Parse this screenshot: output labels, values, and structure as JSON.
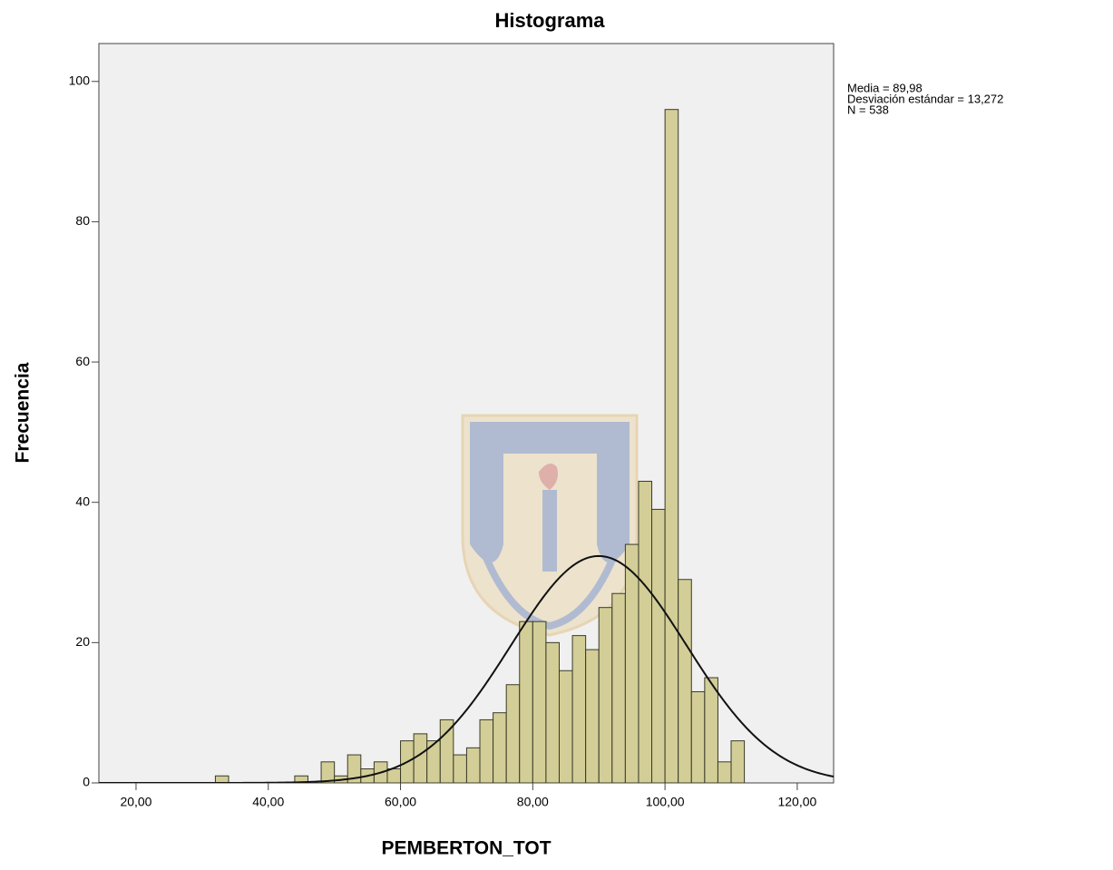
{
  "chart_data": {
    "type": "histogram",
    "title": "Histograma",
    "x_label": "PEMBERTON_TOT",
    "y_label": "Frecuencia",
    "bins": [
      32,
      34,
      36,
      38,
      40,
      42,
      44,
      46,
      48,
      50,
      52,
      54,
      56,
      58,
      60,
      62,
      64,
      66,
      68,
      70,
      72,
      74,
      76,
      78,
      80,
      82,
      84,
      86,
      88,
      90,
      92,
      94,
      96,
      98,
      100,
      102,
      104,
      106,
      108,
      110,
      112
    ],
    "counts": [
      1,
      0,
      0,
      0,
      0,
      0,
      1,
      0,
      3,
      1,
      4,
      2,
      3,
      2,
      6,
      7,
      6,
      9,
      4,
      5,
      9,
      10,
      14,
      23,
      23,
      20,
      16,
      21,
      19,
      25,
      27,
      34,
      43,
      39,
      96,
      29,
      13,
      15,
      3,
      6
    ],
    "color": "#d3ce97",
    "xlim": [
      14.38,
      125.5
    ],
    "ylim": [
      0,
      105.4
    ],
    "xticks": [
      {
        "value": 20,
        "label": "20,00"
      },
      {
        "value": 40,
        "label": "40,00"
      },
      {
        "value": 60,
        "label": "60,00"
      },
      {
        "value": 80,
        "label": "80,00"
      },
      {
        "value": 100,
        "label": "100,00"
      },
      {
        "value": 120,
        "label": "120,00"
      }
    ],
    "yticks": [
      0,
      20,
      40,
      60,
      80,
      100
    ],
    "stats": [
      {
        "value": 89.98,
        "label": "Media = 89,98"
      },
      {
        "value": 13.272,
        "label": "Desviación estándar = 13,272"
      },
      {
        "value": 538,
        "label": "N = 538"
      }
    ],
    "normal_curve": true
  }
}
